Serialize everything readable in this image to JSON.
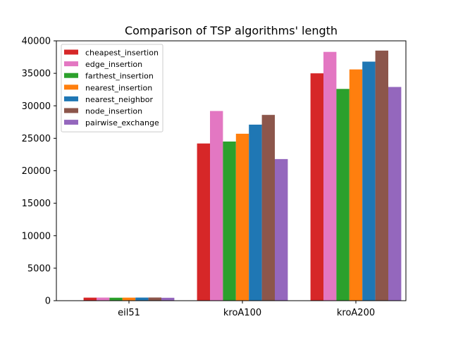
{
  "chart_data": {
    "type": "bar",
    "title": "Comparison of TSP algorithms' length",
    "xlabel": "",
    "ylabel": "",
    "categories": [
      "eil51",
      "kroA100",
      "kroA200"
    ],
    "ylim": [
      0,
      40000
    ],
    "yticks": [
      0,
      5000,
      10000,
      15000,
      20000,
      25000,
      30000,
      35000,
      40000
    ],
    "ytick_labels": [
      "0",
      "5000",
      "10000",
      "15000",
      "20000",
      "25000",
      "30000",
      "35000",
      "40000"
    ],
    "grid": false,
    "legend_position": "top-left",
    "series": [
      {
        "name": "cheapest_insertion",
        "color": "#d62728",
        "values": [
          470,
          24200,
          35000
        ]
      },
      {
        "name": "edge_insertion",
        "color": "#e377c2",
        "values": [
          480,
          29200,
          38300
        ]
      },
      {
        "name": "farthest_insertion",
        "color": "#2ca02c",
        "values": [
          460,
          24500,
          32600
        ]
      },
      {
        "name": "nearest_insertion",
        "color": "#ff7f0e",
        "values": [
          470,
          25700,
          35600
        ]
      },
      {
        "name": "nearest_neighbor",
        "color": "#1f77b4",
        "values": [
          480,
          27100,
          36800
        ]
      },
      {
        "name": "node_insertion",
        "color": "#8c564b",
        "values": [
          490,
          28600,
          38500
        ]
      },
      {
        "name": "pairwise_exchange",
        "color": "#9467bd",
        "values": [
          450,
          21800,
          32900
        ]
      }
    ]
  }
}
